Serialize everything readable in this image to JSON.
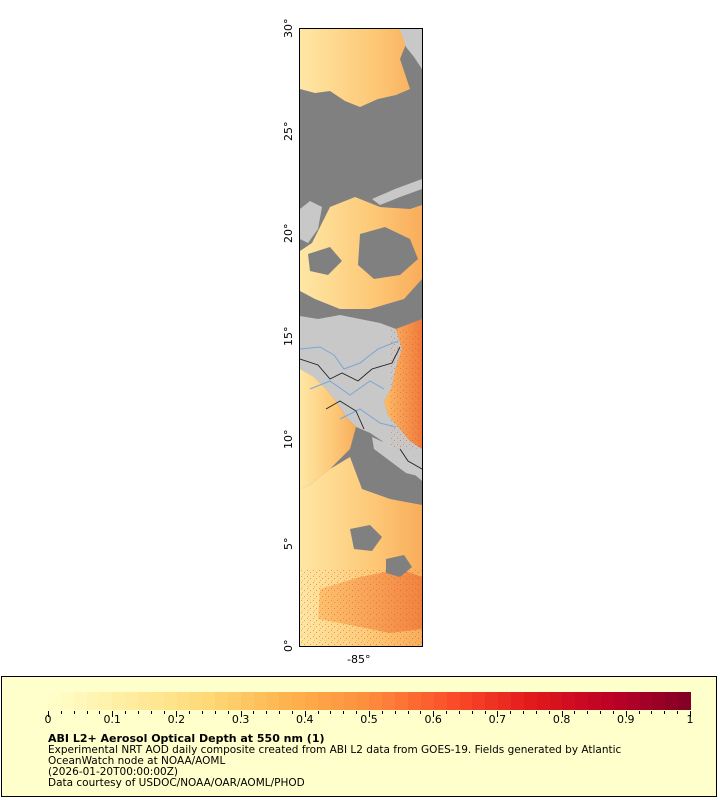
{
  "map": {
    "lat_labels": [
      "30°",
      "25°",
      "20°",
      "15°",
      "10°",
      "5°",
      "0°"
    ],
    "lon_label": "-85°",
    "colors": {
      "missing": "#808080",
      "land": "#c8c8c8",
      "coast": "#5a5a5a",
      "river": "#7aa6d6",
      "border": "#202020"
    }
  },
  "legend": {
    "ticks": [
      "0",
      "0.1",
      "0.2",
      "0.3",
      "0.4",
      "0.5",
      "0.6",
      "0.7",
      "0.8",
      "0.9",
      "1"
    ],
    "range": [
      0,
      1
    ],
    "color_stops": [
      "#ffffcc",
      "#ffeda0",
      "#fed976",
      "#feb24c",
      "#fd8d3c",
      "#fc4e2a",
      "#e31a1c",
      "#bd0026",
      "#800026"
    ]
  },
  "caption": {
    "title": "ABI L2+ Aerosol Optical Depth at 550 nm (1)",
    "line1": "Experimental NRT AOD daily composite created from ABI L2 data from GOES-19. Fields generated by Atlantic",
    "line2": "OceanWatch node at NOAA/AOML",
    "line3": "(2026-01-20T00:00:00Z)",
    "line4": "Data courtesy of USDOC/NOAA/OAR/AOML/PHOD"
  }
}
